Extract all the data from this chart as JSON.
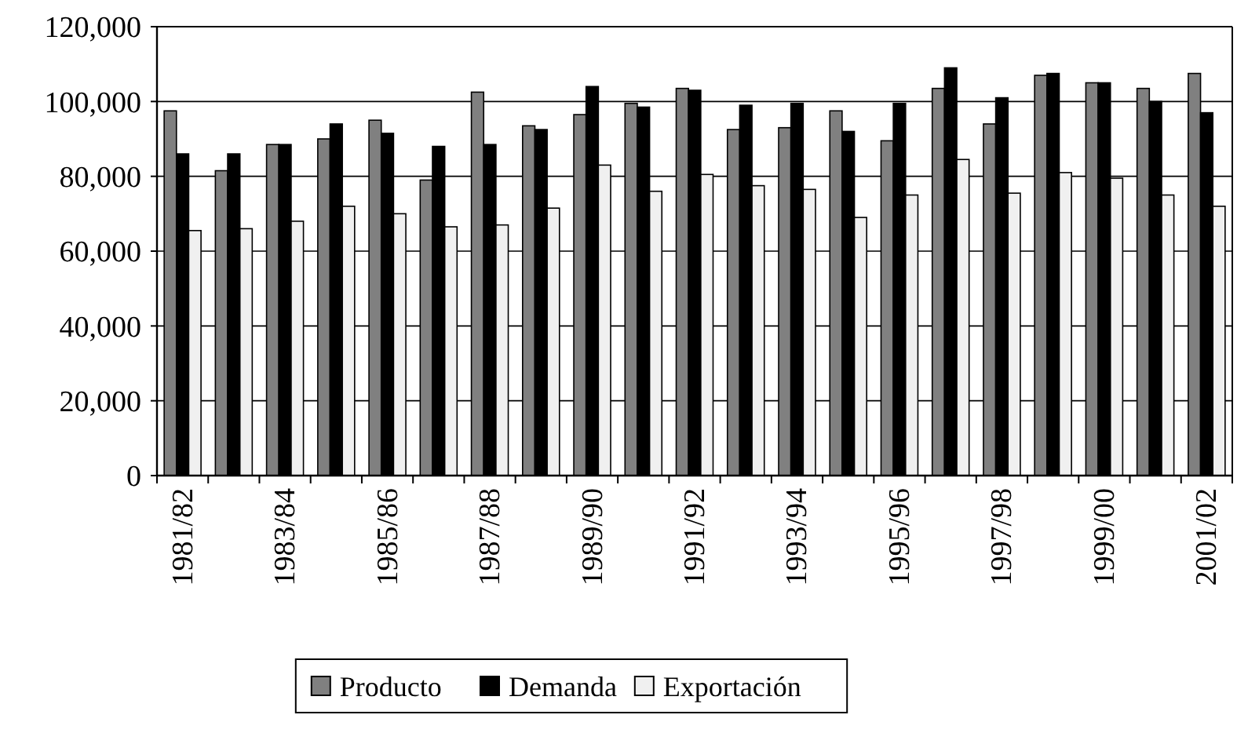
{
  "chart_data": {
    "type": "bar",
    "categories": [
      "1981/82",
      null,
      "1983/84",
      null,
      "1985/86",
      null,
      "1987/88",
      null,
      "1989/90",
      null,
      "1991/92",
      null,
      "1993/94",
      null,
      "1995/96",
      null,
      "1997/98",
      null,
      "1999/00",
      null,
      "2001/02"
    ],
    "series": [
      {
        "name": "Producto",
        "color": "#808080",
        "values": [
          97500,
          81500,
          88500,
          90000,
          95000,
          79000,
          102500,
          93500,
          96500,
          99500,
          103500,
          92500,
          93000,
          97500,
          89500,
          103500,
          94000,
          107000,
          105000,
          103500,
          107500
        ]
      },
      {
        "name": "Demanda",
        "color": "#000000",
        "values": [
          86000,
          86000,
          88500,
          94000,
          91500,
          88000,
          88500,
          92500,
          104000,
          98500,
          103000,
          99000,
          99500,
          92000,
          99500,
          109000,
          101000,
          107500,
          105000,
          100000,
          97000
        ]
      },
      {
        "name": "Exportación",
        "color": "#f0f0f0",
        "values": [
          65500,
          66000,
          68000,
          72000,
          70000,
          66500,
          67000,
          71500,
          83000,
          76000,
          80500,
          77500,
          76500,
          69000,
          75000,
          84500,
          75500,
          81000,
          79500,
          75000,
          72000
        ]
      }
    ],
    "ylim": [
      0,
      120000
    ],
    "yticks": [
      {
        "value": 0,
        "label": "0"
      },
      {
        "value": 20000,
        "label": "20,000"
      },
      {
        "value": 40000,
        "label": "40,000"
      },
      {
        "value": 60000,
        "label": "60,000"
      },
      {
        "value": 80000,
        "label": "80,000"
      },
      {
        "value": 100000,
        "label": "100,000"
      },
      {
        "value": 120000,
        "label": "120,000"
      }
    ],
    "grid": "y",
    "legend": "bottom"
  }
}
